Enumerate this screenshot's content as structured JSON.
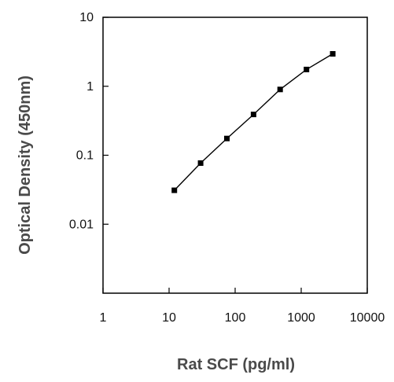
{
  "chart_data": {
    "type": "line",
    "title": "",
    "xlabel": "Rat SCF (pg/ml)",
    "ylabel": "Optical Density (450nm)",
    "x_scale": "log",
    "y_scale": "log",
    "xlim": [
      1,
      10000
    ],
    "ylim": [
      0.001,
      10
    ],
    "x_ticks": [
      "1",
      "10",
      "100",
      "1000",
      "10000"
    ],
    "y_ticks": [
      "0.01",
      "0.1",
      "1",
      "10"
    ],
    "grid": false,
    "legend": "none",
    "series": [
      {
        "x": [
          12,
          30,
          75,
          190,
          480,
          1200,
          3000
        ],
        "y": [
          0.031,
          0.077,
          0.175,
          0.39,
          0.9,
          1.75,
          2.95
        ],
        "color": "#000000",
        "marker": "square"
      }
    ]
  }
}
